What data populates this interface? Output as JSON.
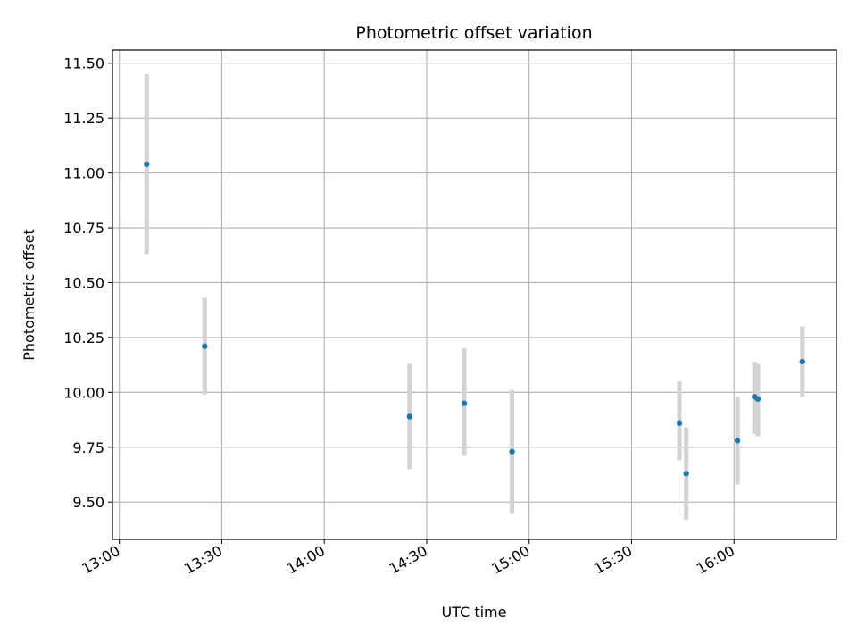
{
  "chart_data": {
    "type": "scatter",
    "title": "Photometric offset variation",
    "xlabel": "UTC time",
    "ylabel": "Photometric offset",
    "grid": true,
    "legend": "none",
    "x_ticks": [
      "13:00",
      "13:30",
      "14:00",
      "14:30",
      "15:00",
      "15:30",
      "16:00"
    ],
    "y_ticks": [
      "9.50",
      "9.75",
      "10.00",
      "10.25",
      "10.50",
      "10.75",
      "11.00",
      "11.25",
      "11.50"
    ],
    "xlim": [
      "12:58",
      "16:30"
    ],
    "ylim": [
      9.33,
      11.56
    ],
    "series": [
      {
        "color": "#1f77b4",
        "errorbar_color": "#d3d3d3",
        "points": [
          {
            "x": "13:08",
            "y": 11.04,
            "yerr_low": 10.63,
            "yerr_high": 11.45
          },
          {
            "x": "13:25",
            "y": 10.21,
            "yerr_low": 9.99,
            "yerr_high": 10.43
          },
          {
            "x": "14:25",
            "y": 9.89,
            "yerr_low": 9.65,
            "yerr_high": 10.13
          },
          {
            "x": "14:41",
            "y": 9.95,
            "yerr_low": 9.71,
            "yerr_high": 10.2
          },
          {
            "x": "14:55",
            "y": 9.73,
            "yerr_low": 9.45,
            "yerr_high": 10.01
          },
          {
            "x": "15:44",
            "y": 9.86,
            "yerr_low": 9.69,
            "yerr_high": 10.05
          },
          {
            "x": "15:46",
            "y": 9.63,
            "yerr_low": 9.42,
            "yerr_high": 9.84
          },
          {
            "x": "16:01",
            "y": 9.78,
            "yerr_low": 9.58,
            "yerr_high": 9.98
          },
          {
            "x": "16:06",
            "y": 9.98,
            "yerr_low": 9.81,
            "yerr_high": 10.14
          },
          {
            "x": "16:07",
            "y": 9.97,
            "yerr_low": 9.8,
            "yerr_high": 10.13
          },
          {
            "x": "16:20",
            "y": 10.14,
            "yerr_low": 9.98,
            "yerr_high": 10.3
          }
        ]
      }
    ]
  }
}
